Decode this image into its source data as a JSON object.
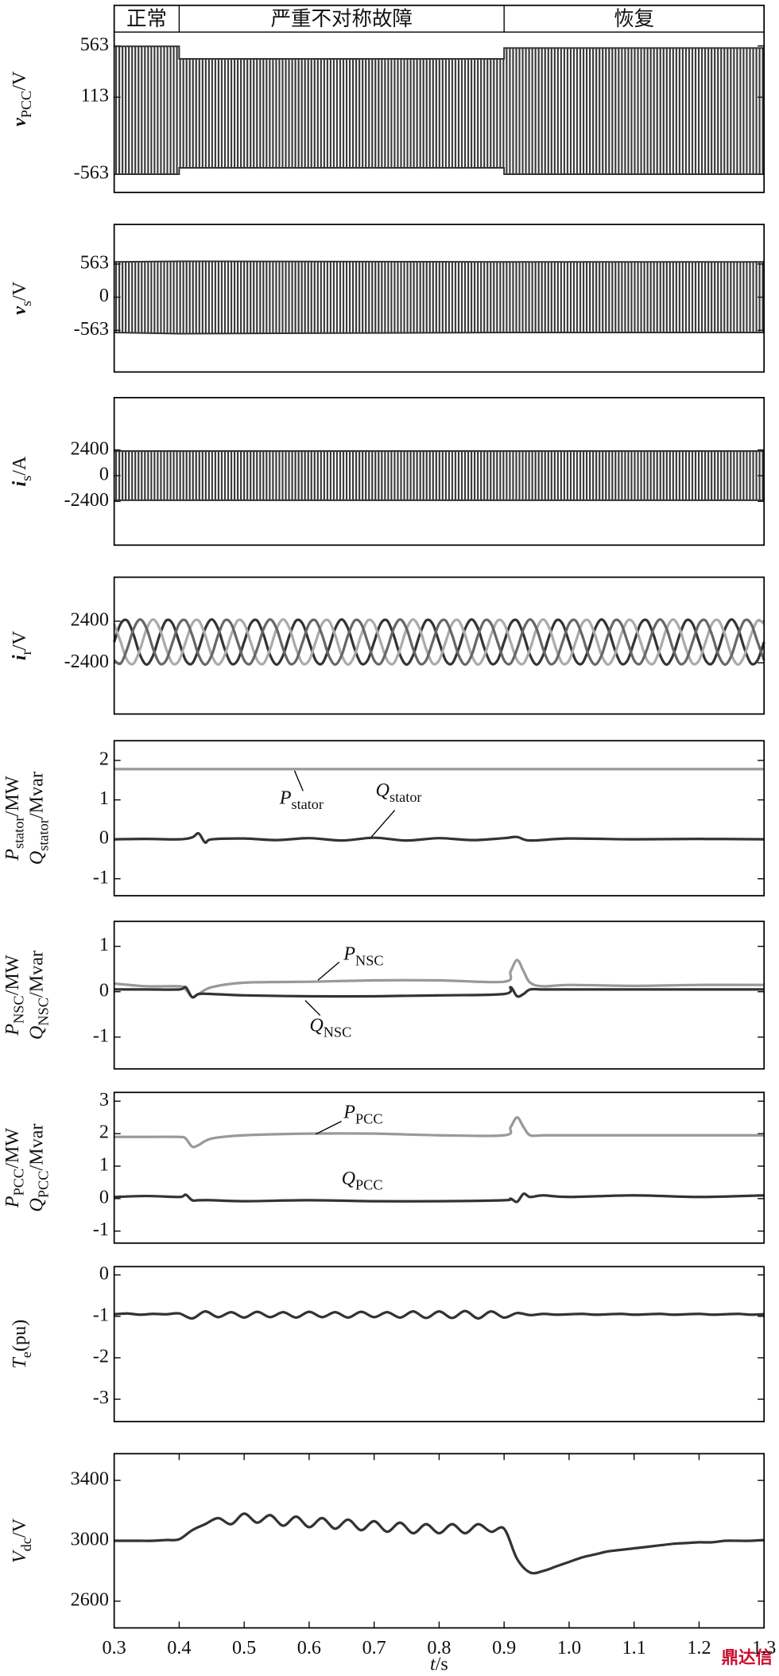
{
  "chart_data": [
    {
      "type": "band",
      "ylabel": [
        [
          "v",
          "PCC",
          "/V"
        ]
      ],
      "xlim": [
        0.3,
        1.3
      ],
      "ylim": [
        -723,
        685
      ],
      "yticks": [
        -563,
        113,
        563
      ],
      "segments": {
        "labels": [
          "正常",
          "严重不对称故障",
          "恢复"
        ],
        "x": [
          0.4,
          0.9
        ]
      },
      "x": [
        0.3,
        0.4,
        0.4,
        0.9,
        0.9,
        1.3
      ],
      "series": [
        {
          "color": "#333333",
          "high": [
            560,
            560,
            450,
            450,
            545,
            545
          ],
          "low": [
            -563,
            -563,
            -507,
            -507,
            -563,
            -563
          ]
        }
      ]
    },
    {
      "type": "band",
      "ylabel": [
        [
          "v",
          "s",
          "/V"
        ]
      ],
      "xlim": [
        0.3,
        1.3
      ],
      "ylim": [
        -1271,
        1236
      ],
      "yticks": [
        -563,
        0,
        563
      ],
      "x": [
        0.3,
        0.4,
        0.9,
        1.3
      ],
      "series": [
        {
          "color": "#333333",
          "high": [
            600,
            610,
            600,
            600
          ],
          "low": [
            -600,
            -620,
            -600,
            -600
          ]
        }
      ]
    },
    {
      "type": "band",
      "ylabel": [
        [
          "i",
          "s",
          "/A"
        ]
      ],
      "xlim": [
        0.3,
        1.3
      ],
      "ylim": [
        -6500,
        7300
      ],
      "yticks": [
        -2400,
        0,
        2400
      ],
      "x": [
        0.3,
        1.3
      ],
      "series": [
        {
          "color": "#333333",
          "high": [
            2300,
            2300
          ],
          "low": [
            -2300,
            -2300
          ]
        }
      ]
    },
    {
      "type": "line",
      "ylabel": [
        [
          "i",
          "r",
          "/V"
        ]
      ],
      "xlim": [
        0.3,
        1.3
      ],
      "ylim": [
        -8300,
        7470
      ],
      "yticks": [
        -2400,
        2400
      ],
      "x": [
        0.3,
        0.31,
        0.32,
        0.33,
        0.34,
        0.35,
        0.36,
        0.37,
        0.38,
        0.39,
        0.4,
        0.41,
        0.42,
        0.43,
        0.44,
        0.45,
        0.46,
        0.47,
        0.48,
        0.49,
        0.5,
        0.51,
        0.52,
        0.53,
        0.54,
        0.55,
        0.56,
        0.57,
        0.58,
        0.59,
        0.6,
        0.61,
        0.62,
        0.63,
        0.64,
        0.65,
        0.66,
        0.67,
        0.68,
        0.69,
        0.7,
        0.71,
        0.72,
        0.73,
        0.74,
        0.75,
        0.76,
        0.77,
        0.78,
        0.79,
        0.8,
        0.81,
        0.82,
        0.83,
        0.84,
        0.85,
        0.86,
        0.87,
        0.88,
        0.89,
        0.9,
        0.91,
        0.92,
        0.93,
        0.94,
        0.95,
        0.96,
        0.97,
        0.98,
        0.99,
        1.0,
        1.01,
        1.02,
        1.03,
        1.04,
        1.05,
        1.06,
        1.07,
        1.08,
        1.09,
        1.1,
        1.11,
        1.12,
        1.13,
        1.14,
        1.15,
        1.16,
        1.17,
        1.18,
        1.19,
        1.2,
        1.21,
        1.22,
        1.23,
        1.24,
        1.25,
        1.26,
        1.27,
        1.28,
        1.29,
        1.3
      ],
      "series": [
        {
          "color": "#333333",
          "values": [
            0,
            2103,
            2473,
            803,
            -1528,
            -2600,
            -1528,
            803,
            2473,
            2103,
            0,
            -2103,
            -2473,
            -803,
            1528,
            2600,
            1528,
            -803,
            -2473,
            -2103,
            0,
            2103,
            2473,
            803,
            -1528,
            -2600,
            -1528,
            803,
            2473,
            2103,
            0,
            -2103,
            -2473,
            -803,
            1528,
            2600,
            1528,
            -803,
            -2473,
            -2103,
            0,
            2103,
            2473,
            803,
            -1528,
            -2600,
            -1528,
            803,
            2473,
            2103,
            0,
            -2103,
            -2473,
            -803,
            1528,
            2600,
            1528,
            -803,
            -2473,
            -2103,
            0,
            2103,
            2473,
            803,
            -1528,
            -2600,
            -1528,
            803,
            2473,
            2103,
            0,
            -2103,
            -2473,
            -803,
            1528,
            2600,
            1528,
            -803,
            -2473,
            -2103,
            0,
            2103,
            2473,
            803,
            -1528,
            -2600,
            -1528,
            803,
            2473,
            2103,
            0,
            -2103,
            -2473,
            -803,
            1528,
            2600,
            1528,
            -803,
            -2473,
            -2103,
            0
          ]
        },
        {
          "color": "#aaaaaa",
          "values": [
            2103,
            0,
            -2103,
            -2473,
            -803,
            1528,
            2600,
            1528,
            -803,
            -2473,
            -2103,
            0,
            2103,
            2473,
            803,
            -1528,
            -2600,
            -1528,
            803,
            2473,
            2103,
            0,
            -2103,
            -2473,
            -803,
            1528,
            2600,
            1528,
            -803,
            -2473,
            -2103,
            0,
            2103,
            2473,
            803,
            -1528,
            -2600,
            -1528,
            803,
            2473,
            2103,
            0,
            -2103,
            -2473,
            -803,
            1528,
            2600,
            1528,
            -803,
            -2473,
            -2103,
            0,
            2103,
            2473,
            803,
            -1528,
            -2600,
            -1528,
            803,
            2473,
            2103,
            0,
            -2103,
            -2473,
            -803,
            1528,
            2600,
            1528,
            -803,
            -2473,
            -2103,
            0,
            2103,
            2473,
            803,
            -1528,
            -2600,
            -1528,
            803,
            2473,
            2103,
            0,
            -2103,
            -2473,
            -803,
            1528,
            2600,
            1528,
            -803,
            -2473,
            -2103,
            0,
            2103,
            2473,
            803,
            -1528,
            -2600,
            -1528,
            803,
            2473,
            2103
          ]
        },
        {
          "color": "#666666",
          "values": [
            -2103,
            -2473,
            -803,
            1528,
            2600,
            1528,
            -803,
            -2473,
            -2103,
            0,
            2103,
            2473,
            803,
            -1528,
            -2600,
            -1528,
            803,
            2473,
            2103,
            0,
            -2103,
            -2473,
            -803,
            1528,
            2600,
            1528,
            -803,
            -2473,
            -2103,
            0,
            2103,
            2473,
            803,
            -1528,
            -2600,
            -1528,
            803,
            2473,
            2103,
            0,
            -2103,
            -2473,
            -803,
            1528,
            2600,
            1528,
            -803,
            -2473,
            -2103,
            0,
            2103,
            2473,
            803,
            -1528,
            -2600,
            -1528,
            803,
            2473,
            2103,
            0,
            -2103,
            -2473,
            -803,
            1528,
            2600,
            1528,
            -803,
            -2473,
            -2103,
            0,
            2103,
            2473,
            803,
            -1528,
            -2600,
            -1528,
            803,
            2473,
            2103,
            0,
            -2103,
            -2473,
            -803,
            1528,
            2600,
            1528,
            -803,
            -2473,
            -2103,
            0,
            2103,
            2473,
            803,
            -1528,
            -2600,
            -1528,
            803,
            2473,
            2103,
            0,
            -2103
          ]
        }
      ]
    },
    {
      "type": "line",
      "ylabel": [
        [
          "P",
          "stator",
          "/MW"
        ],
        [
          "Q",
          "stator",
          "/Mvar"
        ]
      ],
      "xlim": [
        0.3,
        1.3
      ],
      "ylim": [
        -1.43,
        2.5
      ],
      "yticks": [
        -1,
        0,
        1,
        2
      ],
      "x": [
        0.3,
        0.35,
        0.4,
        0.42,
        0.43,
        0.44,
        0.45,
        0.5,
        0.55,
        0.6,
        0.65,
        0.7,
        0.75,
        0.8,
        0.85,
        0.9,
        0.92,
        0.94,
        1.0,
        1.1,
        1.2,
        1.3
      ],
      "series": [
        {
          "name": [
            "P",
            "stator"
          ],
          "color": "#999999",
          "values": [
            1.78,
            1.78,
            1.78,
            1.78,
            1.78,
            1.78,
            1.78,
            1.78,
            1.78,
            1.78,
            1.78,
            1.78,
            1.78,
            1.78,
            1.78,
            1.78,
            1.78,
            1.78,
            1.78,
            1.78,
            1.78,
            1.78
          ]
        },
        {
          "name": [
            "Q",
            "stator"
          ],
          "color": "#333333",
          "values": [
            0,
            0.01,
            0,
            0.05,
            0.15,
            -0.08,
            0,
            0.02,
            -0.02,
            0.03,
            -0.03,
            0.04,
            -0.03,
            0.03,
            -0.02,
            0.03,
            0.06,
            -0.03,
            0.02,
            0,
            0.01,
            0
          ]
        }
      ]
    },
    {
      "type": "line",
      "ylabel": [
        [
          "P",
          "NSC",
          "/MW"
        ],
        [
          "Q",
          "NSC",
          "/Mvar"
        ]
      ],
      "xlim": [
        0.3,
        1.3
      ],
      "ylim": [
        -1.7,
        1.55
      ],
      "yticks": [
        -1,
        0,
        1
      ],
      "x": [
        0.3,
        0.35,
        0.4,
        0.41,
        0.42,
        0.43,
        0.45,
        0.5,
        0.6,
        0.7,
        0.8,
        0.9,
        0.91,
        0.92,
        0.93,
        0.94,
        0.96,
        1.0,
        1.1,
        1.2,
        1.3
      ],
      "series": [
        {
          "name": [
            "P",
            "NSC"
          ],
          "color": "#999999",
          "values": [
            0.18,
            0.12,
            0.12,
            0.05,
            -0.12,
            -0.05,
            0.1,
            0.2,
            0.22,
            0.25,
            0.25,
            0.22,
            0.45,
            0.7,
            0.45,
            0.2,
            0.12,
            0.15,
            0.13,
            0.15,
            0.15
          ]
        },
        {
          "name": [
            "Q",
            "NSC"
          ],
          "color": "#333333",
          "values": [
            0.05,
            0.05,
            0.05,
            0.1,
            -0.12,
            -0.05,
            -0.05,
            -0.08,
            -0.1,
            -0.1,
            -0.08,
            -0.05,
            0.1,
            -0.1,
            -0.05,
            0.05,
            0.05,
            0.05,
            0.05,
            0.05,
            0.05
          ]
        }
      ]
    },
    {
      "type": "line",
      "ylabel": [
        [
          "P",
          "PCC",
          "/MW"
        ],
        [
          "Q",
          "PCC",
          "/Mvar"
        ]
      ],
      "xlim": [
        0.3,
        1.3
      ],
      "ylim": [
        -1.37,
        3.27
      ],
      "yticks": [
        -1,
        0,
        1,
        2,
        3
      ],
      "x": [
        0.3,
        0.35,
        0.4,
        0.41,
        0.42,
        0.43,
        0.45,
        0.5,
        0.6,
        0.7,
        0.8,
        0.9,
        0.91,
        0.92,
        0.93,
        0.94,
        0.96,
        1.0,
        1.1,
        1.2,
        1.3
      ],
      "series": [
        {
          "name": [
            "P",
            "PCC"
          ],
          "color": "#999999",
          "values": [
            1.9,
            1.9,
            1.9,
            1.85,
            1.6,
            1.65,
            1.85,
            1.95,
            2.0,
            2.0,
            1.95,
            1.95,
            2.2,
            2.5,
            2.2,
            1.95,
            1.95,
            1.95,
            1.95,
            1.95,
            1.95
          ]
        },
        {
          "name": [
            "Q",
            "PCC"
          ],
          "color": "#333333",
          "values": [
            0.05,
            0.08,
            0.05,
            0.12,
            -0.05,
            -0.05,
            -0.05,
            -0.08,
            -0.05,
            -0.08,
            -0.08,
            -0.05,
            0,
            -0.1,
            0.15,
            0.05,
            0.1,
            0.05,
            0.1,
            0.05,
            0.1
          ]
        }
      ]
    },
    {
      "type": "line",
      "ylabel": [
        [
          "T",
          "e",
          "(pu)"
        ]
      ],
      "xlim": [
        0.3,
        1.3
      ],
      "ylim": [
        -3.54,
        0.2
      ],
      "yticks": [
        -3,
        -2,
        -1,
        0
      ],
      "x": [
        0.3,
        0.32,
        0.34,
        0.36,
        0.38,
        0.4,
        0.42,
        0.44,
        0.46,
        0.48,
        0.5,
        0.52,
        0.54,
        0.56,
        0.58,
        0.6,
        0.62,
        0.64,
        0.66,
        0.68,
        0.7,
        0.72,
        0.74,
        0.76,
        0.78,
        0.8,
        0.82,
        0.84,
        0.86,
        0.88,
        0.9,
        0.92,
        0.94,
        0.96,
        0.98,
        1.0,
        1.02,
        1.04,
        1.06,
        1.08,
        1.1,
        1.12,
        1.14,
        1.16,
        1.18,
        1.2,
        1.22,
        1.24,
        1.26,
        1.28,
        1.3
      ],
      "series": [
        {
          "color": "#333333",
          "values": [
            -0.95,
            -0.93,
            -0.96,
            -0.94,
            -0.95,
            -0.93,
            -1.05,
            -0.88,
            -1.02,
            -0.9,
            -1.03,
            -0.89,
            -1.02,
            -0.9,
            -1.03,
            -0.89,
            -1.02,
            -0.9,
            -1.03,
            -0.89,
            -1.02,
            -0.9,
            -1.03,
            -0.88,
            -1.04,
            -0.88,
            -1.04,
            -0.87,
            -1.05,
            -0.88,
            -1.03,
            -0.92,
            -0.97,
            -0.94,
            -0.96,
            -0.95,
            -0.94,
            -0.96,
            -0.95,
            -0.94,
            -0.96,
            -0.95,
            -0.94,
            -0.96,
            -0.95,
            -0.94,
            -0.96,
            -0.95,
            -0.94,
            -0.96,
            -0.95
          ]
        }
      ]
    },
    {
      "type": "line",
      "ylabel": [
        [
          "V",
          "dc",
          "/V"
        ]
      ],
      "xlabel": [
        "t",
        "/s"
      ],
      "xlim": [
        0.3,
        1.3
      ],
      "ylim": [
        2423,
        3577
      ],
      "yticks": [
        2600,
        3000,
        3400
      ],
      "xticks": [
        0.3,
        0.4,
        0.5,
        0.6,
        0.7,
        0.8,
        0.9,
        {
          "value": 1,
          "label": "1.0"
        },
        1.1,
        1.2,
        1.3
      ],
      "x": [
        0.3,
        0.32,
        0.34,
        0.36,
        0.38,
        0.4,
        0.42,
        0.44,
        0.46,
        0.48,
        0.5,
        0.52,
        0.54,
        0.56,
        0.58,
        0.6,
        0.62,
        0.64,
        0.66,
        0.68,
        0.7,
        0.72,
        0.74,
        0.76,
        0.78,
        0.8,
        0.82,
        0.84,
        0.86,
        0.88,
        0.9,
        0.92,
        0.94,
        0.96,
        0.98,
        1.0,
        1.02,
        1.04,
        1.06,
        1.08,
        1.1,
        1.12,
        1.14,
        1.16,
        1.18,
        1.2,
        1.22,
        1.24,
        1.26,
        1.28,
        1.3
      ],
      "series": [
        {
          "color": "#333333",
          "values": [
            3000,
            3000,
            3000,
            3000,
            3005,
            3010,
            3070,
            3110,
            3150,
            3110,
            3180,
            3120,
            3170,
            3100,
            3160,
            3090,
            3150,
            3080,
            3140,
            3070,
            3130,
            3060,
            3120,
            3050,
            3110,
            3050,
            3110,
            3050,
            3110,
            3060,
            3080,
            2880,
            2790,
            2800,
            2830,
            2860,
            2890,
            2910,
            2930,
            2940,
            2950,
            2960,
            2970,
            2980,
            2985,
            2990,
            2990,
            3000,
            3000,
            3000,
            3005
          ]
        }
      ]
    }
  ],
  "watermark": "鼎达信"
}
